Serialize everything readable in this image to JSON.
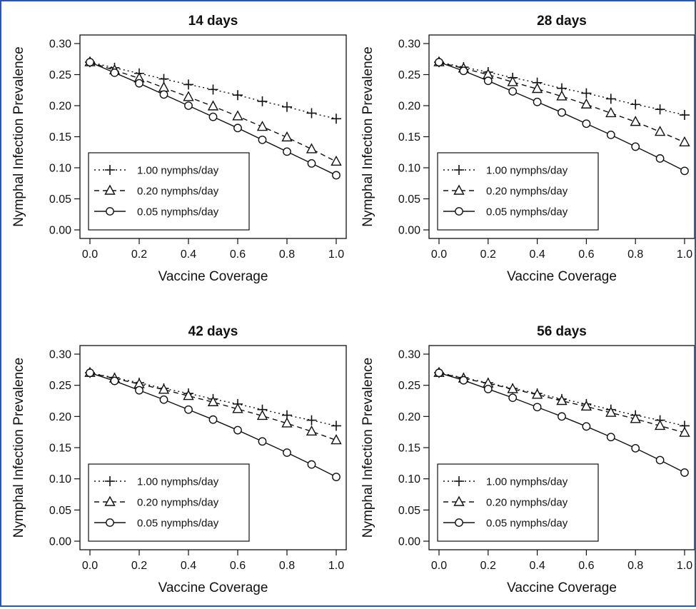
{
  "colors": {
    "frame": "#2f56a8",
    "ink": "#111111"
  },
  "legend_labels": [
    "1.00 nymphs/day",
    "0.20 nymphs/day",
    "0.05 nymphs/day"
  ],
  "chart_data": [
    {
      "type": "line",
      "title": "14 days",
      "xlabel": "Vaccine Coverage",
      "ylabel": "Nymphal Infection Prevalence",
      "xlim": [
        0,
        1
      ],
      "ylim": [
        0,
        0.3
      ],
      "xticks": [
        "0.0",
        "0.2",
        "0.4",
        "0.6",
        "0.8",
        "1.0"
      ],
      "yticks": [
        "0.00",
        "0.05",
        "0.10",
        "0.15",
        "0.20",
        "0.25",
        "0.30"
      ],
      "x": [
        0.0,
        0.1,
        0.2,
        0.3,
        0.4,
        0.5,
        0.6,
        0.7,
        0.8,
        0.9,
        1.0
      ],
      "legend_position": "bottom-left",
      "series": [
        {
          "name": "1.00 nymphs/day",
          "marker": "plus",
          "line": "dotted",
          "values": [
            0.27,
            0.261,
            0.252,
            0.243,
            0.234,
            0.226,
            0.217,
            0.207,
            0.198,
            0.188,
            0.179
          ]
        },
        {
          "name": "0.20 nymphs/day",
          "marker": "triangle",
          "line": "dashed",
          "values": [
            0.27,
            0.257,
            0.244,
            0.229,
            0.214,
            0.199,
            0.183,
            0.166,
            0.149,
            0.13,
            0.11
          ]
        },
        {
          "name": "0.05 nymphs/day",
          "marker": "circle",
          "line": "solid",
          "values": [
            0.27,
            0.253,
            0.236,
            0.218,
            0.2,
            0.182,
            0.164,
            0.145,
            0.126,
            0.107,
            0.088
          ]
        }
      ]
    },
    {
      "type": "line",
      "title": "28 days",
      "xlabel": "Vaccine Coverage",
      "ylabel": "Nymphal Infection Prevalence",
      "xlim": [
        0,
        1
      ],
      "ylim": [
        0,
        0.3
      ],
      "xticks": [
        "0.0",
        "0.2",
        "0.4",
        "0.6",
        "0.8",
        "1.0"
      ],
      "yticks": [
        "0.00",
        "0.05",
        "0.10",
        "0.15",
        "0.20",
        "0.25",
        "0.30"
      ],
      "x": [
        0.0,
        0.1,
        0.2,
        0.3,
        0.4,
        0.5,
        0.6,
        0.7,
        0.8,
        0.9,
        1.0
      ],
      "legend_position": "bottom-left",
      "series": [
        {
          "name": "1.00 nymphs/day",
          "marker": "plus",
          "line": "dotted",
          "values": [
            0.27,
            0.262,
            0.254,
            0.245,
            0.237,
            0.228,
            0.22,
            0.211,
            0.202,
            0.194,
            0.185
          ]
        },
        {
          "name": "0.20 nymphs/day",
          "marker": "triangle",
          "line": "dashed",
          "values": [
            0.27,
            0.26,
            0.25,
            0.238,
            0.227,
            0.215,
            0.202,
            0.188,
            0.174,
            0.158,
            0.141
          ]
        },
        {
          "name": "0.05 nymphs/day",
          "marker": "circle",
          "line": "solid",
          "values": [
            0.27,
            0.256,
            0.24,
            0.223,
            0.206,
            0.189,
            0.171,
            0.153,
            0.134,
            0.115,
            0.095
          ]
        }
      ]
    },
    {
      "type": "line",
      "title": "42 days",
      "xlabel": "Vaccine Coverage",
      "ylabel": "Nymphal Infection Prevalence",
      "xlim": [
        0,
        1
      ],
      "ylim": [
        0,
        0.3
      ],
      "xticks": [
        "0.0",
        "0.2",
        "0.4",
        "0.6",
        "0.8",
        "1.0"
      ],
      "yticks": [
        "0.00",
        "0.05",
        "0.10",
        "0.15",
        "0.20",
        "0.25",
        "0.30"
      ],
      "x": [
        0.0,
        0.1,
        0.2,
        0.3,
        0.4,
        0.5,
        0.6,
        0.7,
        0.8,
        0.9,
        1.0
      ],
      "legend_position": "bottom-left",
      "series": [
        {
          "name": "1.00 nymphs/day",
          "marker": "plus",
          "line": "dotted",
          "values": [
            0.27,
            0.262,
            0.254,
            0.245,
            0.237,
            0.228,
            0.22,
            0.211,
            0.202,
            0.194,
            0.185
          ]
        },
        {
          "name": "0.20 nymphs/day",
          "marker": "triangle",
          "line": "dashed",
          "values": [
            0.27,
            0.261,
            0.252,
            0.243,
            0.233,
            0.223,
            0.212,
            0.201,
            0.189,
            0.176,
            0.162
          ]
        },
        {
          "name": "0.05 nymphs/day",
          "marker": "circle",
          "line": "solid",
          "values": [
            0.27,
            0.257,
            0.242,
            0.227,
            0.211,
            0.195,
            0.178,
            0.16,
            0.142,
            0.123,
            0.103
          ]
        }
      ]
    },
    {
      "type": "line",
      "title": "56 days",
      "xlabel": "Vaccine Coverage",
      "ylabel": "Nymphal Infection Prevalence",
      "xlim": [
        0,
        1
      ],
      "ylim": [
        0,
        0.3
      ],
      "xticks": [
        "0.0",
        "0.2",
        "0.4",
        "0.6",
        "0.8",
        "1.0"
      ],
      "yticks": [
        "0.00",
        "0.05",
        "0.10",
        "0.15",
        "0.20",
        "0.25",
        "0.30"
      ],
      "x": [
        0.0,
        0.1,
        0.2,
        0.3,
        0.4,
        0.5,
        0.6,
        0.7,
        0.8,
        0.9,
        1.0
      ],
      "legend_position": "bottom-left",
      "series": [
        {
          "name": "1.00 nymphs/day",
          "marker": "plus",
          "line": "dotted",
          "values": [
            0.27,
            0.262,
            0.254,
            0.245,
            0.237,
            0.228,
            0.22,
            0.211,
            0.202,
            0.194,
            0.185
          ]
        },
        {
          "name": "0.20 nymphs/day",
          "marker": "triangle",
          "line": "dashed",
          "values": [
            0.27,
            0.261,
            0.253,
            0.244,
            0.235,
            0.225,
            0.216,
            0.206,
            0.196,
            0.185,
            0.174
          ]
        },
        {
          "name": "0.05 nymphs/day",
          "marker": "circle",
          "line": "solid",
          "values": [
            0.27,
            0.258,
            0.244,
            0.23,
            0.215,
            0.2,
            0.184,
            0.167,
            0.149,
            0.13,
            0.11
          ]
        }
      ]
    }
  ]
}
